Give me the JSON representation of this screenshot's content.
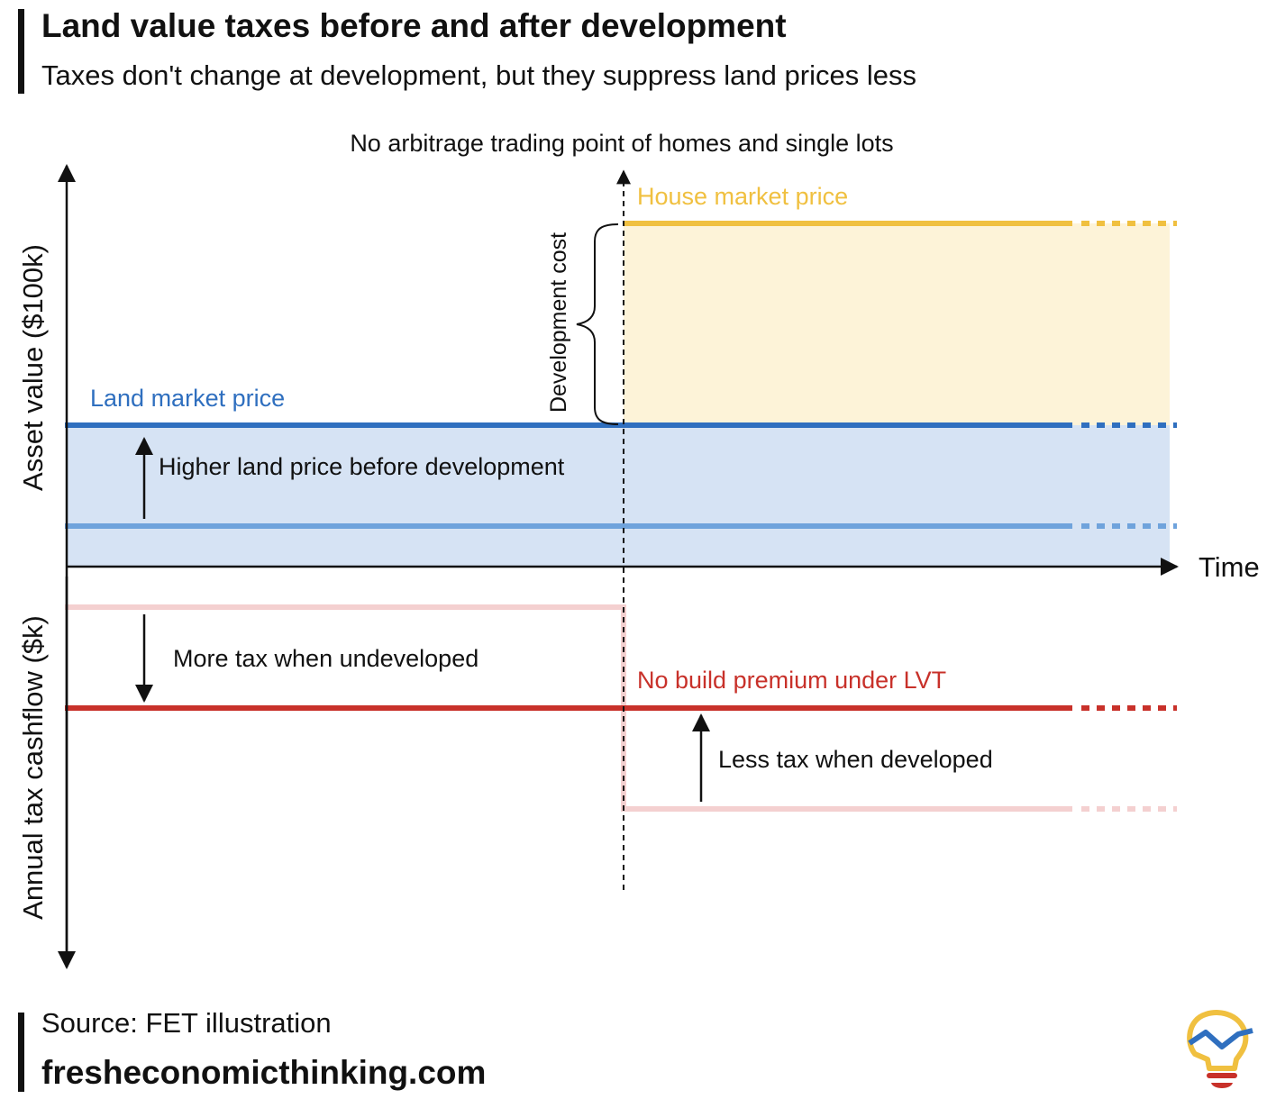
{
  "title": "Land value taxes before and after development",
  "subtitle": "Taxes don't change at development, but they suppress land prices less",
  "source": "Source: FET illustration",
  "website": "fresheconomicthinking.com",
  "diagram": {
    "top_label": "No arbitrage trading point of homes and single lots",
    "y_axis_upper_label": "Asset value ($100k)",
    "y_axis_lower_label": "Annual tax cashflow ($k)",
    "x_axis_label": "Time",
    "house_price_label": "House market price",
    "land_price_label": "Land market price",
    "development_cost_label": "Development cost",
    "higher_land_price_label": "Higher land price before development",
    "more_tax_label": "More tax when undeveloped",
    "no_build_premium_label": "No build premium under LVT",
    "less_tax_label": "Less tax when developed"
  },
  "colors": {
    "house": "#f0c040",
    "house_fill": "#fdf3d8",
    "land": "#2f6fbf",
    "land_light": "#6fa3dc",
    "land_fill": "#d6e3f4",
    "lvt": "#c8312a",
    "tax_light": "#f4d0d0",
    "text": "#111111"
  },
  "icons": [
    "lightbulb-logo-icon"
  ]
}
